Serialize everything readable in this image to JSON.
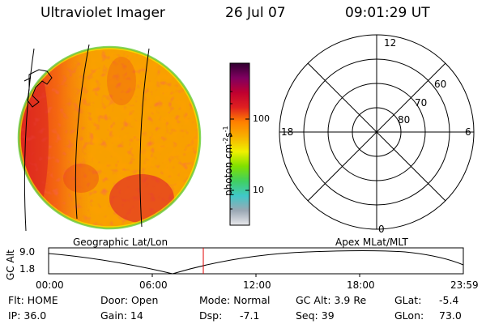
{
  "header": {
    "title": "Ultraviolet Imager",
    "date": "26 Jul 07",
    "time": "09:01:29 UT"
  },
  "colorbar": {
    "ticks": [
      "100",
      "10"
    ],
    "unit": "photon cm",
    "unit_exp1": "-2",
    "unit_mid": "s",
    "unit_exp2": "-1",
    "gradient": [
      "#e8e8ec",
      "#9aa8b4",
      "#40c8c8",
      "#40d060",
      "#80e000",
      "#f0f000",
      "#f8b000",
      "#ff8000",
      "#e02020",
      "#c00030",
      "#800060",
      "#300030"
    ]
  },
  "image_panels": {
    "left_caption": "Geographic Lat/Lon",
    "right_caption": "Apex MLat/MLT"
  },
  "polar": {
    "mlt_labels": {
      "top": "12",
      "left": "18",
      "right": "6",
      "bottom": "0"
    },
    "lat_labels": [
      "60",
      "70",
      "80"
    ]
  },
  "altitude_plot": {
    "ylabel": "GC Alt",
    "y_ticks": [
      "9.0",
      "1.8"
    ],
    "x_ticks": [
      "00:00",
      "06:00",
      "12:00",
      "18:00",
      "23:59"
    ],
    "marker_color": "#e00000"
  },
  "status": {
    "flt": "Flt: HOME",
    "door": "Door: Open",
    "mode": "Mode: Normal",
    "gcalt": "GC Alt: 3.9 Re",
    "glat_label": "GLat:",
    "glat_value": "-5.4",
    "ip": "IP: 36.0",
    "gain": "Gain: 14",
    "dsp_label": "Dsp:",
    "dsp_value": "-7.1",
    "seq": "Seq: 39",
    "glon_label": "GLon:",
    "glon_value": "73.0"
  }
}
